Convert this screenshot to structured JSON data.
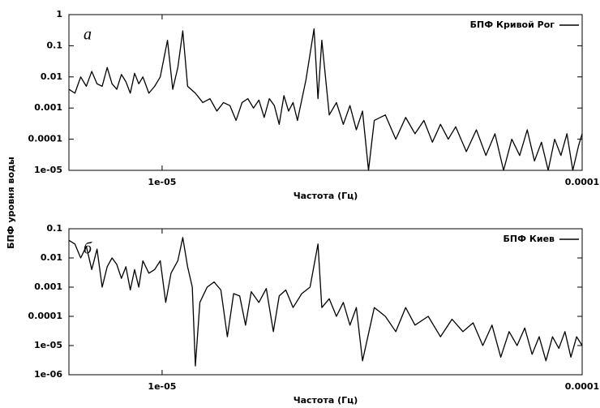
{
  "chart_data": [
    {
      "type": "line",
      "ylabel": "БПФ уровня воды",
      "xlabel": "Частота (Гц)",
      "annotation": "а",
      "xscale": "log",
      "yscale": "log",
      "legend": "upper right",
      "xlim": [
        6e-06,
        0.0001
      ],
      "xticks": [
        {
          "value": 1e-05,
          "label": "1e-05"
        },
        0.0001
      ],
      "ylim": [
        1e-05,
        1
      ],
      "yticks": [
        1,
        0.1,
        0.01,
        0.001,
        0.0001,
        {
          "value": 1e-05,
          "label": "1e-05"
        }
      ],
      "series": [
        {
          "name": "БПФ Кривой Рог",
          "color": "#000000",
          "x": [
            6e-06,
            6.2e-06,
            6.4e-06,
            6.6e-06,
            6.8e-06,
            7e-06,
            7.2e-06,
            7.4e-06,
            7.6e-06,
            7.8e-06,
            8e-06,
            8.2e-06,
            8.4e-06,
            8.6e-06,
            8.8e-06,
            9e-06,
            9.3e-06,
            9.6e-06,
            9.9e-06,
            1.03e-05,
            1.06e-05,
            1.09e-05,
            1.12e-05,
            1.15e-05,
            1.2e-05,
            1.25e-05,
            1.3e-05,
            1.35e-05,
            1.4e-05,
            1.45e-05,
            1.5e-05,
            1.55e-05,
            1.6e-05,
            1.65e-05,
            1.7e-05,
            1.75e-05,
            1.8e-05,
            1.85e-05,
            1.9e-05,
            1.95e-05,
            2e-05,
            2.05e-05,
            2.1e-05,
            2.2e-05,
            2.3e-05,
            2.35e-05,
            2.4e-05,
            2.5e-05,
            2.6e-05,
            2.7e-05,
            2.8e-05,
            2.9e-05,
            3e-05,
            3.1e-05,
            3.2e-05,
            3.4e-05,
            3.6e-05,
            3.8e-05,
            4e-05,
            4.2e-05,
            4.4e-05,
            4.6e-05,
            4.8e-05,
            5e-05,
            5.3e-05,
            5.6e-05,
            5.9e-05,
            6.2e-05,
            6.5e-05,
            6.8e-05,
            7.1e-05,
            7.4e-05,
            7.7e-05,
            8e-05,
            8.3e-05,
            8.6e-05,
            8.9e-05,
            9.2e-05,
            9.5e-05,
            9.8e-05,
            0.0001
          ],
          "values": [
            0.004,
            0.003,
            0.01,
            0.005,
            0.015,
            0.006,
            0.005,
            0.02,
            0.006,
            0.004,
            0.012,
            0.007,
            0.003,
            0.013,
            0.006,
            0.01,
            0.003,
            0.005,
            0.01,
            0.15,
            0.004,
            0.02,
            0.3,
            0.005,
            0.003,
            0.0015,
            0.002,
            0.0008,
            0.0015,
            0.0012,
            0.0004,
            0.0015,
            0.002,
            0.001,
            0.0018,
            0.0005,
            0.002,
            0.0012,
            0.0003,
            0.0025,
            0.0008,
            0.0015,
            0.0004,
            0.008,
            0.35,
            0.002,
            0.15,
            0.0006,
            0.0015,
            0.0003,
            0.0012,
            0.0002,
            0.0008,
            1e-05,
            0.0004,
            0.0006,
            0.0001,
            0.0005,
            0.00015,
            0.0004,
            8e-05,
            0.0003,
            0.0001,
            0.00025,
            4e-05,
            0.0002,
            3e-05,
            0.00015,
            1e-05,
            0.0001,
            3e-05,
            0.0002,
            2e-05,
            8e-05,
            1e-05,
            0.0001,
            3e-05,
            0.00015,
            1e-05,
            6e-05,
            0.00015
          ]
        }
      ]
    },
    {
      "type": "line",
      "xlabel": "Частота (Гц)",
      "annotation": "б",
      "xscale": "log",
      "yscale": "log",
      "legend": "upper right",
      "xlim": [
        6e-06,
        0.0001
      ],
      "xticks": [
        {
          "value": 1e-05,
          "label": "1e-05"
        },
        0.0001
      ],
      "ylim": [
        1e-06,
        0.1
      ],
      "yticks": [
        0.1,
        0.01,
        0.001,
        0.0001,
        {
          "value": 1e-05,
          "label": "1e-05"
        },
        {
          "value": 1e-06,
          "label": "1e-06"
        }
      ],
      "series": [
        {
          "name": "БПФ Киев",
          "color": "#000000",
          "x": [
            6e-06,
            6.2e-06,
            6.4e-06,
            6.6e-06,
            6.8e-06,
            7e-06,
            7.2e-06,
            7.4e-06,
            7.6e-06,
            7.8e-06,
            8e-06,
            8.2e-06,
            8.4e-06,
            8.6e-06,
            8.8e-06,
            9e-06,
            9.3e-06,
            9.6e-06,
            9.9e-06,
            1.02e-05,
            1.05e-05,
            1.09e-05,
            1.12e-05,
            1.15e-05,
            1.18e-05,
            1.2e-05,
            1.23e-05,
            1.28e-05,
            1.33e-05,
            1.38e-05,
            1.43e-05,
            1.48e-05,
            1.53e-05,
            1.58e-05,
            1.63e-05,
            1.7e-05,
            1.77e-05,
            1.84e-05,
            1.9e-05,
            1.97e-05,
            2.05e-05,
            2.15e-05,
            2.25e-05,
            2.35e-05,
            2.4e-05,
            2.5e-05,
            2.6e-05,
            2.7e-05,
            2.8e-05,
            2.9e-05,
            3e-05,
            3.2e-05,
            3.4e-05,
            3.6e-05,
            3.8e-05,
            4e-05,
            4.3e-05,
            4.6e-05,
            4.9e-05,
            5.2e-05,
            5.5e-05,
            5.8e-05,
            6.1e-05,
            6.4e-05,
            6.7e-05,
            7e-05,
            7.3e-05,
            7.6e-05,
            7.9e-05,
            8.2e-05,
            8.5e-05,
            8.8e-05,
            9.1e-05,
            9.4e-05,
            9.7e-05,
            0.0001
          ],
          "values": [
            0.04,
            0.03,
            0.01,
            0.025,
            0.004,
            0.02,
            0.001,
            0.005,
            0.01,
            0.006,
            0.002,
            0.005,
            0.0008,
            0.004,
            0.001,
            0.008,
            0.003,
            0.004,
            0.008,
            0.0003,
            0.003,
            0.008,
            0.05,
            0.005,
            0.001,
            2e-06,
            0.0003,
            0.001,
            0.0015,
            0.0008,
            2e-05,
            0.0006,
            0.0005,
            5e-05,
            0.0007,
            0.0003,
            0.0009,
            3e-05,
            0.0005,
            0.0008,
            0.0002,
            0.0006,
            0.001,
            0.03,
            0.0002,
            0.0004,
            0.0001,
            0.0003,
            5e-05,
            0.0002,
            3e-06,
            0.0002,
            0.0001,
            3e-05,
            0.0002,
            5e-05,
            0.0001,
            2e-05,
            8e-05,
            3e-05,
            6e-05,
            1e-05,
            5e-05,
            4e-06,
            3e-05,
            1e-05,
            4e-05,
            5e-06,
            2e-05,
            3e-06,
            2e-05,
            8e-06,
            3e-05,
            4e-06,
            2e-05,
            1e-05
          ]
        }
      ]
    }
  ]
}
